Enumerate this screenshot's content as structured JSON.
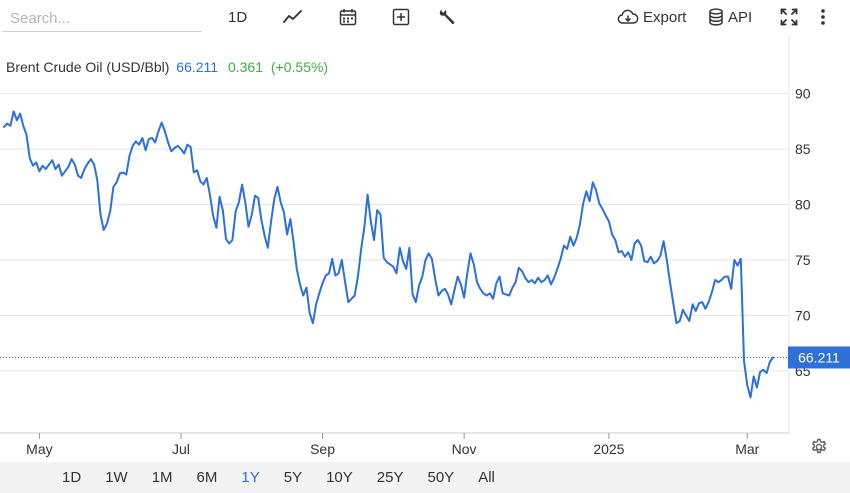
{
  "toolbar": {
    "search_placeholder": "Search...",
    "interval_label": "1D",
    "export_label": "Export",
    "api_label": "API"
  },
  "header": {
    "name": "Brent Crude Oil (USD/Bbl)",
    "price": "66.211",
    "change": "0.361",
    "change_pct": "(+0.55%)"
  },
  "ranges": [
    {
      "label": "1D"
    },
    {
      "label": "1W"
    },
    {
      "label": "1M"
    },
    {
      "label": "6M"
    },
    {
      "label": "1Y",
      "active": true
    },
    {
      "label": "5Y"
    },
    {
      "label": "10Y"
    },
    {
      "label": "25Y"
    },
    {
      "label": "50Y"
    },
    {
      "label": "All"
    }
  ],
  "colors": {
    "line": "#2e6fd8",
    "accent": "#2e6fd8",
    "up": "#3cb043",
    "grid": "#e6e6e6"
  },
  "chart_data": {
    "type": "line",
    "y_ticks": [
      65,
      70,
      75,
      80,
      85,
      90
    ],
    "ylim": [
      59.4,
      95.2
    ],
    "x_ticks": [
      {
        "label": "May",
        "idx": 11
      },
      {
        "label": "Jul",
        "idx": 55
      },
      {
        "label": "Sep",
        "idx": 99
      },
      {
        "label": "Nov",
        "idx": 143
      },
      {
        "label": "2025",
        "idx": 188
      },
      {
        "label": "Mar",
        "idx": 231
      }
    ],
    "last_value_label": "66.211",
    "last_value": 66.211,
    "grid": "horizontal",
    "series": [
      {
        "values": [
          87.0,
          87.3,
          87.1,
          88.4,
          87.6,
          88.2,
          87.1,
          86.3,
          84.2,
          83.5,
          83.8,
          83.0,
          83.5,
          83.2,
          83.6,
          84.0,
          83.2,
          83.6,
          82.6,
          83.0,
          83.4,
          84.1,
          83.6,
          82.6,
          82.4,
          83.2,
          83.7,
          84.1,
          83.6,
          82.2,
          79.1,
          77.7,
          78.3,
          79.4,
          81.6,
          82.0,
          82.8,
          82.9,
          82.7,
          84.4,
          85.3,
          85.7,
          85.4,
          86.0,
          84.9,
          85.9,
          86.0,
          85.6,
          86.6,
          87.4,
          86.6,
          85.6,
          84.8,
          85.1,
          85.3,
          85.0,
          84.6,
          85.4,
          85.2,
          82.9,
          83.1,
          82.1,
          81.8,
          82.4,
          80.9,
          79.0,
          77.9,
          80.7,
          79.5,
          76.9,
          76.5,
          76.8,
          79.4,
          80.2,
          81.8,
          80.2,
          78.0,
          79.1,
          80.8,
          80.6,
          78.6,
          77.2,
          76.1,
          78.5,
          80.5,
          81.6,
          80.2,
          79.3,
          77.3,
          78.7,
          76.6,
          74.2,
          72.8,
          71.8,
          72.5,
          70.2,
          69.3,
          71.0,
          72.0,
          72.9,
          73.6,
          73.8,
          75.1,
          73.6,
          73.8,
          75.0,
          73.0,
          71.2,
          71.5,
          71.8,
          73.5,
          76.0,
          78.0,
          80.9,
          78.5,
          76.8,
          79.5,
          79.1,
          75.2,
          74.8,
          74.6,
          74.4,
          73.8,
          76.1,
          74.9,
          74.2,
          76.1,
          71.9,
          71.2,
          72.7,
          73.5,
          75.0,
          75.6,
          75.1,
          73.3,
          71.8,
          72.2,
          72.4,
          71.9,
          71.0,
          72.3,
          73.5,
          72.8,
          71.6,
          73.8,
          75.6,
          74.6,
          73.0,
          72.4,
          72.0,
          71.8,
          72.0,
          71.5,
          72.9,
          73.5,
          72.0,
          71.9,
          71.8,
          72.5,
          73.0,
          74.3,
          74.0,
          73.4,
          73.0,
          73.2,
          72.9,
          73.4,
          73.0,
          73.2,
          73.6,
          72.8,
          73.4,
          74.2,
          75.1,
          76.3,
          76.0,
          77.1,
          76.3,
          77.0,
          78.2,
          80.1,
          81.2,
          80.3,
          82.0,
          81.3,
          80.1,
          79.6,
          79.0,
          78.5,
          77.3,
          76.8,
          75.7,
          75.8,
          75.3,
          75.7,
          75.0,
          76.5,
          76.8,
          76.3,
          74.9,
          74.8,
          75.3,
          74.7,
          74.9,
          75.4,
          76.7,
          75.0,
          73.0,
          71.1,
          69.3,
          69.5,
          70.5,
          70.0,
          69.5,
          71.0,
          70.4,
          71.1,
          71.2,
          70.6,
          71.2,
          72.1,
          73.2,
          73.0,
          73.2,
          73.5,
          73.5,
          72.4,
          75.0,
          74.5,
          75.1,
          65.9,
          63.7,
          62.6,
          64.5,
          63.5,
          64.9,
          65.1,
          64.8,
          65.8,
          66.211
        ]
      }
    ]
  }
}
